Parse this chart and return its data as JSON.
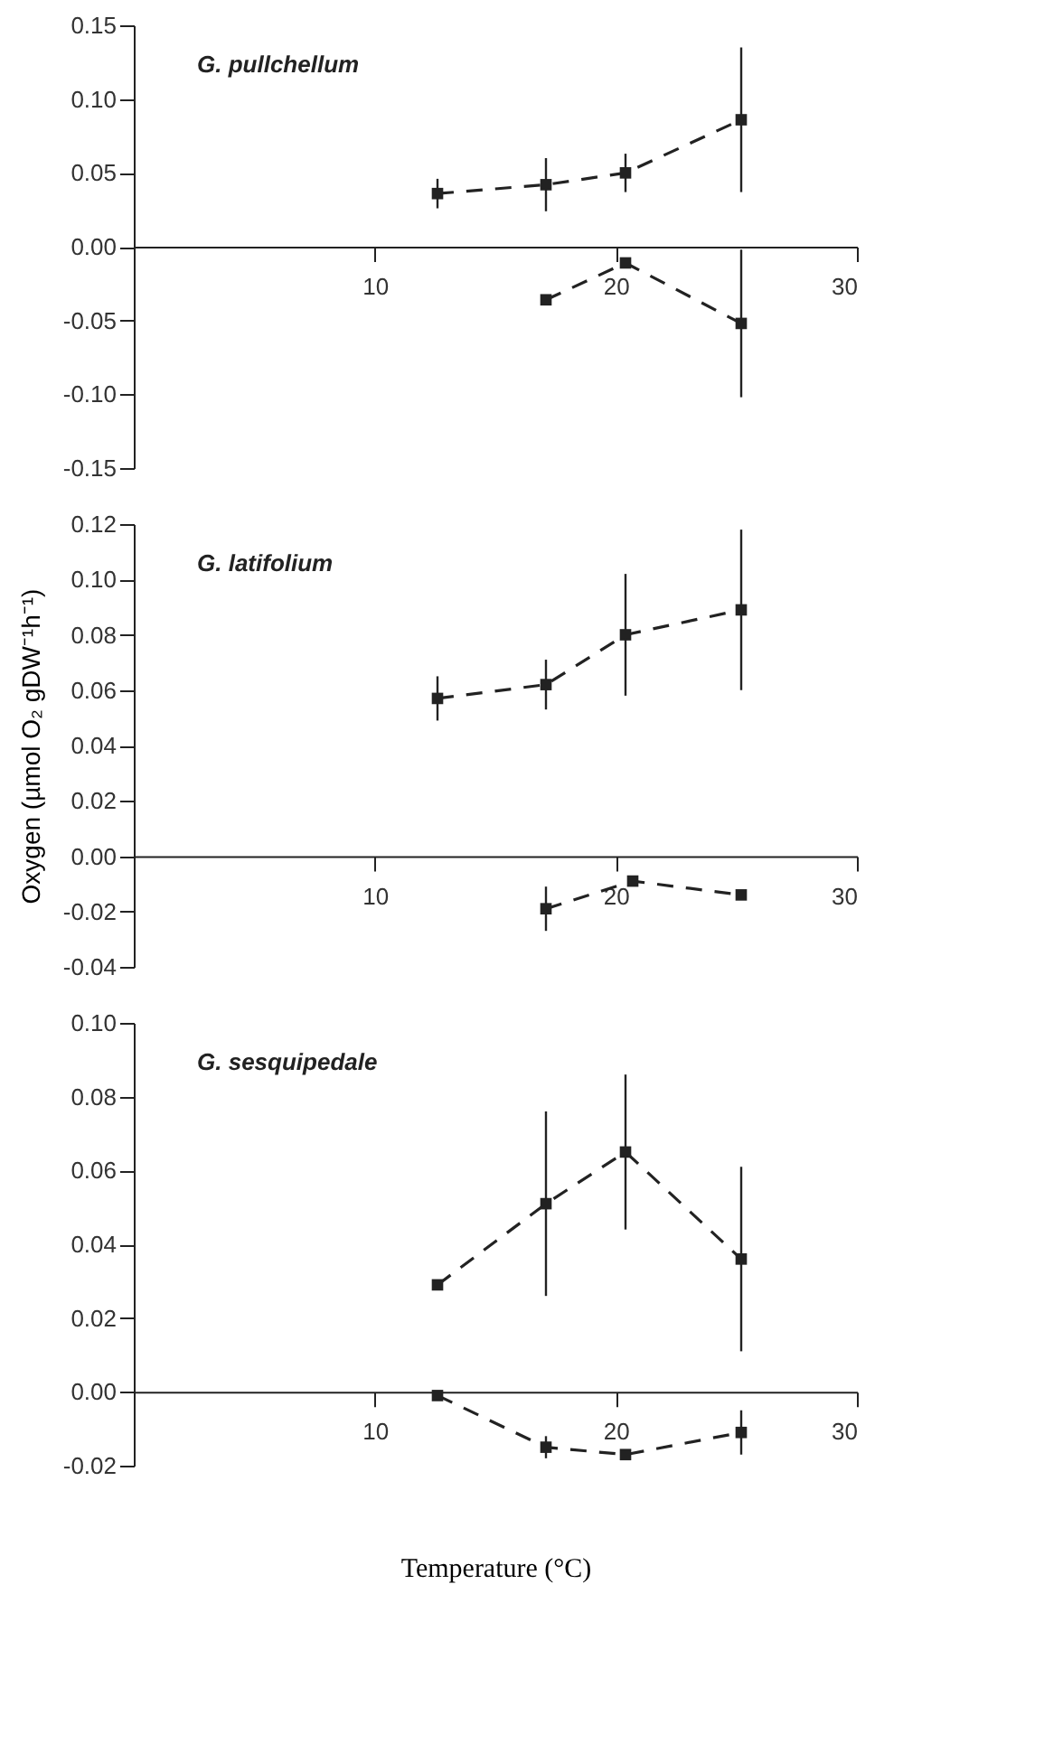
{
  "chart_data": [
    {
      "type": "line",
      "annotations": [
        "G. pullchellum"
      ],
      "marker": "square",
      "line_style": "dashed",
      "grid": false,
      "xlim": [
        0,
        30
      ],
      "xticks": [
        10,
        20,
        30
      ],
      "ylim": [
        -0.15,
        0.15
      ],
      "yticks": [
        {
          "value": -0.15,
          "label": "-0.15"
        },
        {
          "value": -0.1,
          "label": "-0.10"
        },
        {
          "value": -0.05,
          "label": "-0.05"
        },
        {
          "value": 0,
          "label": "0.00"
        },
        {
          "value": 0.05,
          "label": "0.05"
        },
        {
          "value": 0.1,
          "label": "0.10"
        },
        {
          "value": 0.15,
          "label": "0.15"
        }
      ],
      "series": [
        {
          "color": "#222222",
          "x": [
            12.6,
            17.1,
            20.4,
            25.2
          ],
          "values": [
            0.036,
            0.042,
            0.05,
            0.086
          ],
          "errors": [
            0.01,
            0.018,
            0.013,
            0.049
          ]
        },
        {
          "color": "#222222",
          "x": [
            17.1,
            20.4,
            25.2
          ],
          "values": [
            -0.036,
            -0.011,
            -0.052
          ],
          "errors": [
            null,
            null,
            0.05
          ]
        }
      ]
    },
    {
      "type": "line",
      "annotations": [
        "G. latifolium"
      ],
      "ylabel": "Oxygen (µmol O₂ gDW⁻¹h⁻¹)",
      "marker": "square",
      "line_style": "dashed",
      "grid": false,
      "xlim": [
        0,
        30
      ],
      "xticks": [
        10,
        20,
        30
      ],
      "ylim": [
        -0.04,
        0.12
      ],
      "yticks": [
        {
          "value": -0.04,
          "label": "-0.04"
        },
        {
          "value": -0.02,
          "label": "-0.02"
        },
        {
          "value": 0,
          "label": "0.00"
        },
        {
          "value": 0.02,
          "label": "0.02"
        },
        {
          "value": 0.04,
          "label": "0.04"
        },
        {
          "value": 0.06,
          "label": "0.06"
        },
        {
          "value": 0.08,
          "label": "0.08"
        },
        {
          "value": 0.1,
          "label": "0.10"
        },
        {
          "value": 0.12,
          "label": "0.12"
        }
      ],
      "series": [
        {
          "color": "#222222",
          "x": [
            12.6,
            17.1,
            20.4,
            25.2
          ],
          "values": [
            0.057,
            0.062,
            0.08,
            0.089
          ],
          "errors": [
            0.008,
            0.009,
            0.022,
            0.029
          ]
        },
        {
          "color": "#222222",
          "x": [
            17.1,
            20.7,
            25.2
          ],
          "values": [
            -0.019,
            -0.009,
            -0.014
          ],
          "errors": [
            0.008,
            null,
            null
          ]
        }
      ]
    },
    {
      "type": "line",
      "annotations": [
        "G. sesquipedale"
      ],
      "xlabel": "Temperature (°C)",
      "marker": "square",
      "line_style": "dashed",
      "grid": false,
      "xlim": [
        0,
        30
      ],
      "xticks": [
        10,
        20,
        30
      ],
      "ylim": [
        -0.02,
        0.1
      ],
      "yticks": [
        {
          "value": -0.02,
          "label": "-0.02"
        },
        {
          "value": 0,
          "label": "0.00"
        },
        {
          "value": 0.02,
          "label": "0.02"
        },
        {
          "value": 0.04,
          "label": "0.04"
        },
        {
          "value": 0.06,
          "label": "0.06"
        },
        {
          "value": 0.08,
          "label": "0.08"
        },
        {
          "value": 0.1,
          "label": "0.10"
        }
      ],
      "series": [
        {
          "color": "#222222",
          "x": [
            12.6,
            17.1,
            20.4,
            25.2
          ],
          "values": [
            0.029,
            0.051,
            0.065,
            0.036
          ],
          "errors": [
            null,
            0.025,
            0.021,
            0.025
          ]
        },
        {
          "color": "#222222",
          "x": [
            12.6,
            17.1,
            20.4,
            25.2
          ],
          "values": [
            -0.001,
            -0.015,
            -0.017,
            -0.011
          ],
          "errors": [
            null,
            0.003,
            null,
            0.006
          ]
        }
      ]
    }
  ]
}
